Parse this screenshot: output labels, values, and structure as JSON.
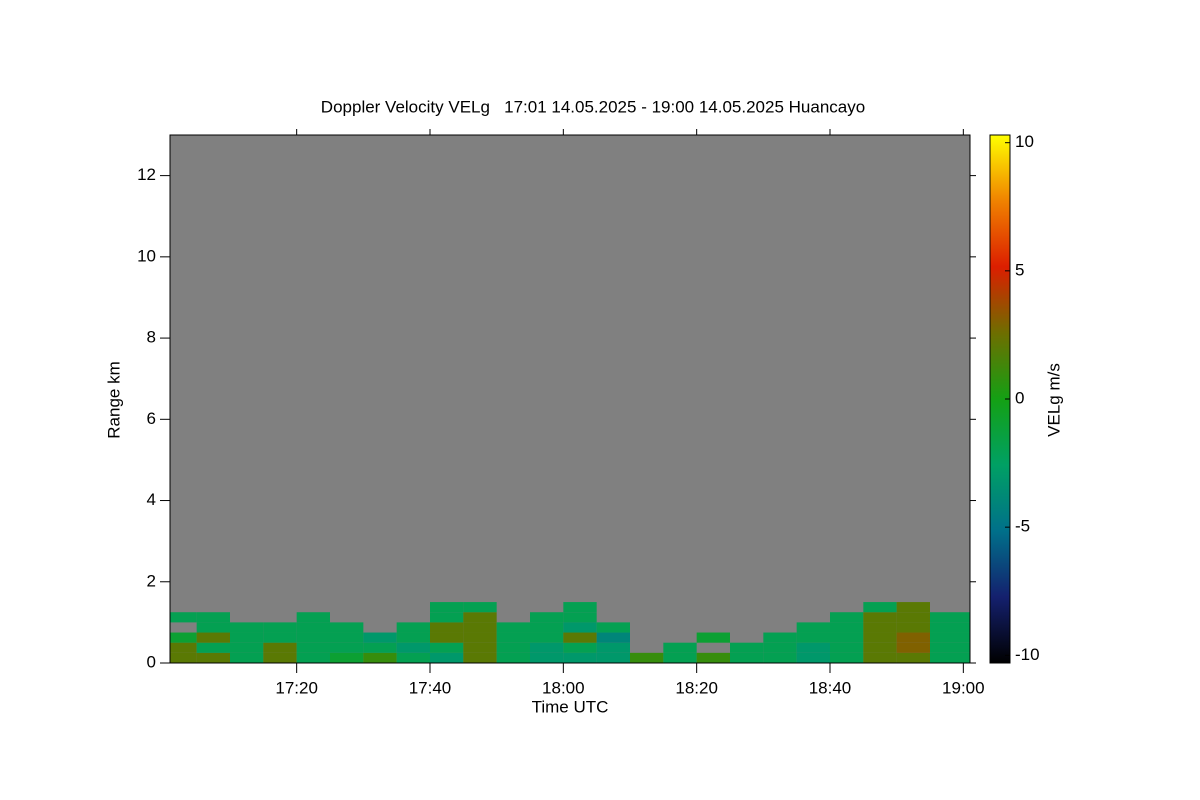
{
  "chart_data": {
    "type": "heatmap",
    "title": "Doppler Velocity VELg   17:01 14.05.2025 - 19:00 14.05.2025 Huancayo",
    "x_label": "Time UTC",
    "y_label": "Range km",
    "colorbar_label": "VELg m/s",
    "xlim": [
      1021,
      1141
    ],
    "xticks": [
      {
        "value": 1040,
        "label": "17:20"
      },
      {
        "value": 1060,
        "label": "17:40"
      },
      {
        "value": 1080,
        "label": "18:00"
      },
      {
        "value": 1100,
        "label": "18:20"
      },
      {
        "value": 1120,
        "label": "18:40"
      },
      {
        "value": 1140,
        "label": "19:00"
      }
    ],
    "ylim": [
      0,
      13
    ],
    "yticks": [
      0,
      2,
      4,
      6,
      8,
      10,
      12
    ],
    "clim": [
      -10.3,
      10.3
    ],
    "cticks": [
      -10,
      -5,
      0,
      5,
      10
    ],
    "colormap": [
      "#000000",
      "#14206e",
      "#00708a",
      "#00a064",
      "#14a014",
      "#6e6e00",
      "#dc1e00",
      "#f08200",
      "#ffff00"
    ],
    "background": "#808080",
    "x_edges": [
      1021,
      1025,
      1030,
      1035,
      1040,
      1045,
      1050,
      1055,
      1060,
      1065,
      1070,
      1075,
      1080,
      1085,
      1090,
      1095,
      1100,
      1105,
      1110,
      1115,
      1120,
      1125,
      1130,
      1135,
      1141
    ],
    "y_edges": [
      0,
      0.25,
      0.5,
      0.75,
      1.0,
      1.25,
      1.5
    ],
    "z": [
      [
        2,
        2,
        -2,
        2,
        -2,
        -1,
        1,
        -2,
        -3,
        2,
        -2,
        -3,
        -3,
        -3,
        1,
        -2,
        1,
        -2,
        -2,
        -3,
        -2,
        2,
        2,
        -2
      ],
      [
        2,
        -2,
        -2,
        2,
        -2,
        -2,
        -2,
        -3,
        -2,
        2,
        -2,
        -3,
        -2,
        -3,
        null,
        -2,
        null,
        -2,
        -2,
        -3,
        -2,
        2,
        3,
        -2
      ],
      [
        -1,
        2,
        -2,
        -2,
        -2,
        -2,
        -3,
        -2,
        2,
        2,
        -2,
        -2,
        2,
        -4,
        null,
        null,
        -1,
        null,
        -2,
        -2,
        -2,
        2,
        3,
        -2
      ],
      [
        null,
        -2,
        -2,
        -2,
        -2,
        -2,
        null,
        -2,
        2,
        2,
        -2,
        -2,
        -3,
        -2,
        null,
        null,
        null,
        null,
        null,
        -2,
        -2,
        2,
        2,
        -2
      ],
      [
        -2,
        -2,
        null,
        null,
        -2,
        null,
        null,
        null,
        -2,
        2,
        null,
        -2,
        -2,
        null,
        null,
        null,
        null,
        null,
        null,
        null,
        -2,
        2,
        2,
        -2
      ],
      [
        null,
        null,
        null,
        null,
        null,
        null,
        null,
        null,
        -2,
        -2,
        null,
        null,
        -2,
        null,
        null,
        null,
        null,
        null,
        null,
        null,
        null,
        -2,
        2,
        null
      ]
    ]
  }
}
